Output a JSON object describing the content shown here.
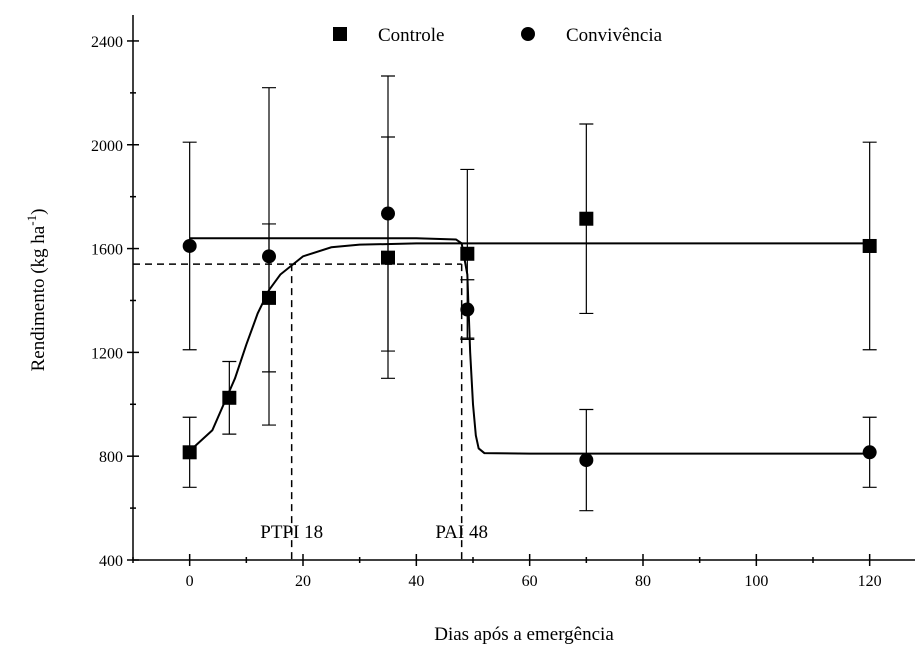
{
  "chart_data": {
    "type": "scatter",
    "xlabel": "Dias após a emergência",
    "ylabel": [
      "Rendimento (kg ha",
      "-1",
      ")"
    ],
    "xlim": [
      -10,
      128
    ],
    "ylim": [
      400,
      2500
    ],
    "xticks": [
      0,
      20,
      40,
      60,
      80,
      100,
      120
    ],
    "xminor": [
      -10,
      10,
      30,
      50,
      70,
      90,
      110
    ],
    "yticks": [
      400,
      800,
      1200,
      1600,
      2000,
      2400
    ],
    "yminor": [
      600,
      1000,
      1400,
      1800,
      2200
    ],
    "legend": "top",
    "series": [
      {
        "name": "Controle",
        "marker": "square",
        "color": "#000000",
        "x": [
          0,
          7,
          14,
          35,
          49,
          70,
          120
        ],
        "values": [
          815,
          1025,
          1410,
          1565,
          1580,
          1715,
          1610
        ],
        "errors": [
          135,
          140,
          285,
          465,
          325,
          365,
          400
        ]
      },
      {
        "name": "Convivência",
        "marker": "circle",
        "color": "#000000",
        "x": [
          0,
          14,
          35,
          49,
          70,
          120
        ],
        "values": [
          1610,
          1570,
          1735,
          1365,
          785,
          815
        ],
        "errors": [
          400,
          650,
          530,
          115,
          195,
          135
        ]
      }
    ],
    "fits": [
      {
        "x": [
          0,
          4,
          8,
          10,
          12,
          14,
          16,
          20,
          25,
          30,
          40,
          49,
          60,
          80,
          100,
          120
        ],
        "values": [
          820,
          900,
          1100,
          1230,
          1350,
          1440,
          1500,
          1570,
          1605,
          1615,
          1620,
          1620,
          1620,
          1620,
          1620,
          1620
        ]
      },
      {
        "x": [
          0,
          20,
          40,
          47,
          48,
          49,
          49.5,
          50,
          50.5,
          51,
          52,
          60,
          80,
          100,
          120
        ],
        "values": [
          1640,
          1640,
          1640,
          1635,
          1620,
          1500,
          1200,
          1000,
          880,
          830,
          812,
          810,
          810,
          810,
          810
        ]
      }
    ],
    "threshold_y": 1540,
    "thresholds": [
      {
        "label": "PTPI 18",
        "x": 18
      },
      {
        "label": "PAI 48",
        "x": 48
      }
    ]
  }
}
